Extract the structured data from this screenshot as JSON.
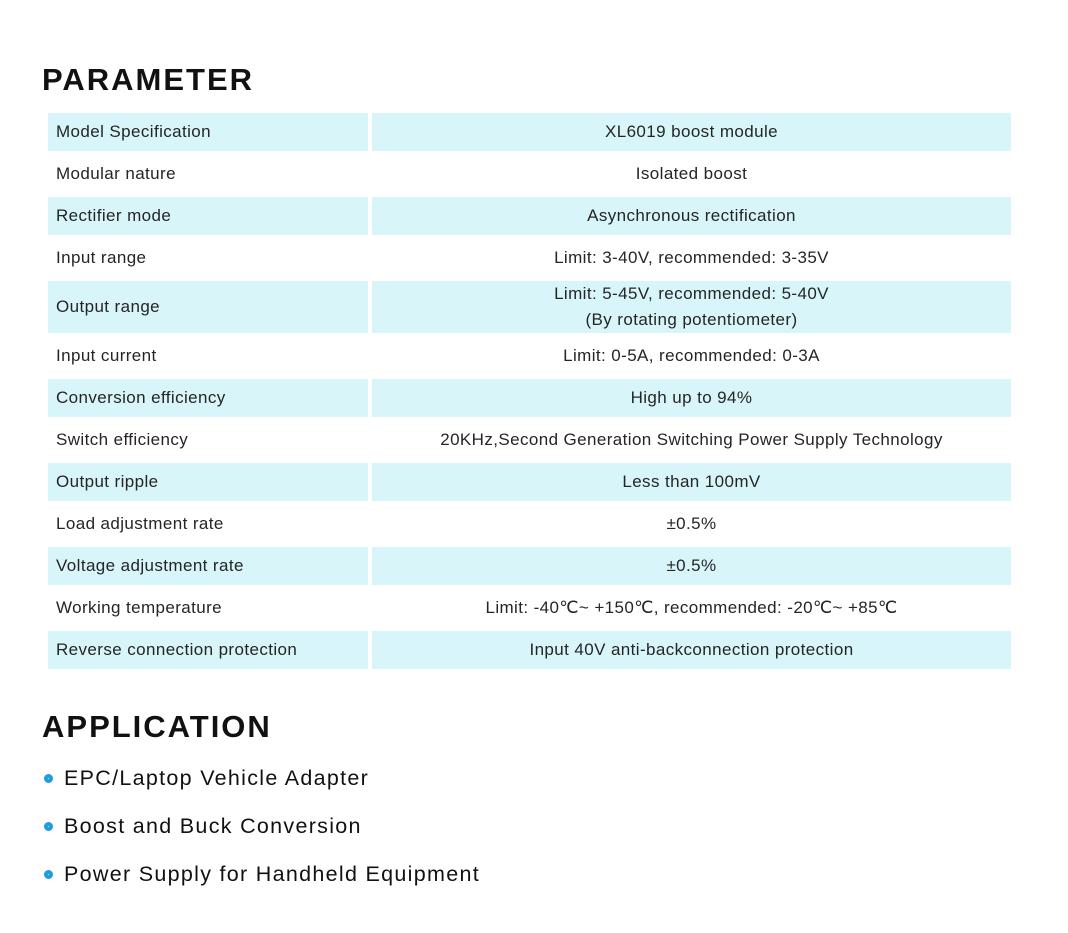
{
  "colors": {
    "row_shade": "#d8f5f9",
    "bullet_blue": "#1e9ed8",
    "heading_text": "#111111",
    "body_text": "#252525",
    "page_background": "#ffffff"
  },
  "parameter": {
    "heading": "PARAMETER",
    "rows": [
      {
        "label": "Model Specification",
        "value_lines": [
          "XL6019 boost module"
        ]
      },
      {
        "label": "Modular nature",
        "value_lines": [
          "Isolated boost"
        ]
      },
      {
        "label": "Rectifier mode",
        "value_lines": [
          "Asynchronous rectification"
        ]
      },
      {
        "label": "Input range",
        "value_lines": [
          "Limit: 3-40V, recommended: 3-35V"
        ]
      },
      {
        "label": "Output range",
        "value_lines": [
          "Limit: 5-45V, recommended: 5-40V",
          "(By rotating potentiometer)"
        ]
      },
      {
        "label": "Input current",
        "value_lines": [
          "Limit: 0-5A, recommended: 0-3A"
        ]
      },
      {
        "label": "Conversion efficiency",
        "value_lines": [
          "High up to 94%"
        ]
      },
      {
        "label": "Switch efficiency",
        "value_lines": [
          "20KHz,Second Generation Switching Power Supply Technology"
        ]
      },
      {
        "label": "Output ripple",
        "value_lines": [
          "Less than 100mV"
        ]
      },
      {
        "label": "Load adjustment rate",
        "value_lines": [
          "±0.5%"
        ]
      },
      {
        "label": "Voltage adjustment rate",
        "value_lines": [
          "±0.5%"
        ]
      },
      {
        "label": "Working temperature",
        "value_lines": [
          "Limit: -40℃~ +150℃, recommended: -20℃~ +85℃"
        ]
      },
      {
        "label": "Reverse connection protection",
        "value_lines": [
          "Input 40V anti-backconnection protection"
        ]
      }
    ]
  },
  "application": {
    "heading": "APPLICATION",
    "items": [
      {
        "label": "EPC/Laptop Vehicle Adapter"
      },
      {
        "label": "Boost and Buck Conversion"
      },
      {
        "label": "Power Supply for Handheld Equipment"
      }
    ]
  }
}
